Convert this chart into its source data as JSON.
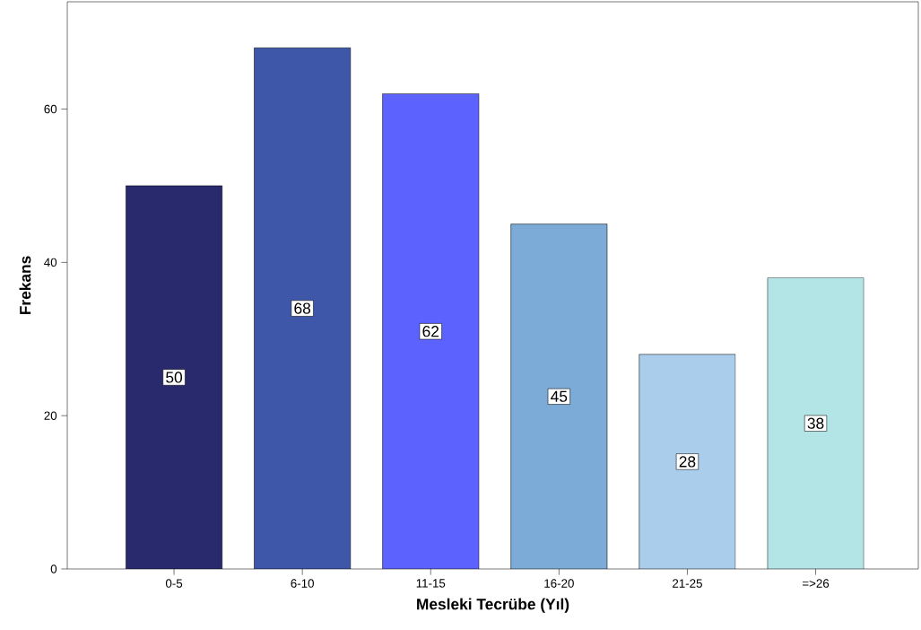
{
  "chart_data": {
    "type": "bar",
    "xlabel": "Mesleki Tecrübe (Yıl)",
    "ylabel": "Frekans",
    "categories": [
      "0-5",
      "6-10",
      "11-15",
      "16-20",
      "21-25",
      "=>26"
    ],
    "values": [
      50,
      68,
      62,
      45,
      28,
      38
    ],
    "colors": [
      "#29296e",
      "#3e57a8",
      "#5c62fe",
      "#7babd6",
      "#aacdec",
      "#b3e5e6"
    ],
    "ylim": [
      0,
      74
    ],
    "yticks": [
      0,
      20,
      40,
      60
    ],
    "grid": false,
    "data_labels": true
  }
}
